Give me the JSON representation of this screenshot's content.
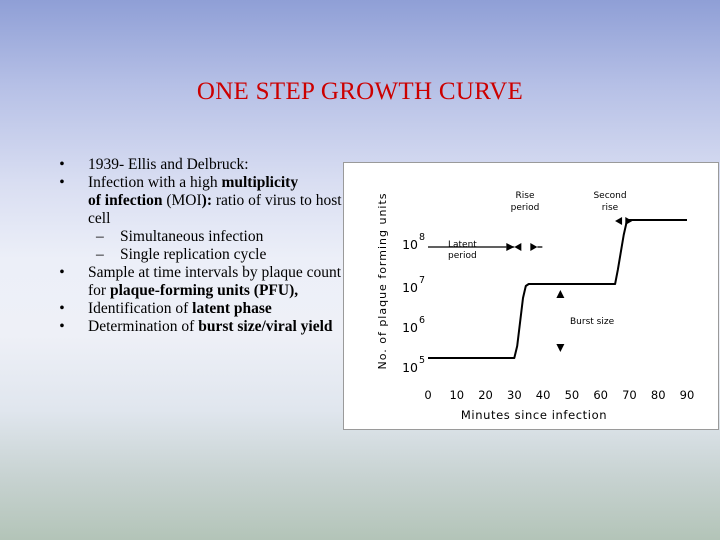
{
  "slide": {
    "title": "ONE STEP GROWTH CURVE",
    "bullets": {
      "b1": "1939- Ellis and Delbruck:",
      "b2": {
        "pre": "Infection with a high ",
        "bold1": "multiplicity",
        "bold2": "of infection",
        "mid": " (MOI",
        "bold3": "):",
        "post": " ratio of virus to host cell"
      },
      "subs": [
        "Simultaneous infection",
        "Single replication cycle"
      ],
      "b3": {
        "pre": "Sample at time intervals by plaque count for ",
        "bold": "plaque-forming units (PFU),",
        "post": ""
      },
      "b4": {
        "pre": "Identification of ",
        "bold": "latent phase"
      },
      "b5": {
        "pre": "Determination of ",
        "bold": "burst size/viral yield"
      },
      "dot": "•",
      "dash": "–"
    }
  },
  "chart_data": {
    "type": "line",
    "title": "",
    "xlabel": "Minutes since infection",
    "ylabel": "No. of plaque forming units",
    "x_ticks": [
      0,
      10,
      20,
      30,
      40,
      50,
      60,
      70,
      80,
      90
    ],
    "x_tick_labels": [
      "0",
      "10",
      "20",
      "30",
      "40",
      "50",
      "60",
      "70",
      "80",
      "90"
    ],
    "y_ticks": [
      5,
      6,
      7,
      8
    ],
    "y_tick_base": "10",
    "y_tick_exps": [
      "5",
      "6",
      "7",
      "8"
    ],
    "y_log_scale": true,
    "xlim": [
      0,
      90
    ],
    "ylim": [
      5,
      8.5
    ],
    "grid": false,
    "series": [
      {
        "x": [
          0,
          30,
          31,
          33,
          34,
          35,
          45,
          65,
          66,
          68,
          69,
          70,
          90
        ],
        "y": [
          5,
          5,
          5.3,
          6.5,
          6.8,
          6.85,
          6.85,
          6.85,
          7.2,
          8,
          8.3,
          8.35,
          8.35
        ]
      }
    ],
    "annotations": {
      "latent": {
        "line1": "Latent",
        "line2": "period",
        "x_start": 0,
        "x_end": 30
      },
      "rise": {
        "line1": "Rise",
        "line2": "period",
        "x_start": 30,
        "x_end": 38
      },
      "second_rise": {
        "line1": "Second",
        "line2": "rise",
        "x_start": 65,
        "x_end": 71
      },
      "burst": {
        "label": "Burst size",
        "x": 46,
        "y_low": 5,
        "y_high": 6.85
      }
    }
  }
}
